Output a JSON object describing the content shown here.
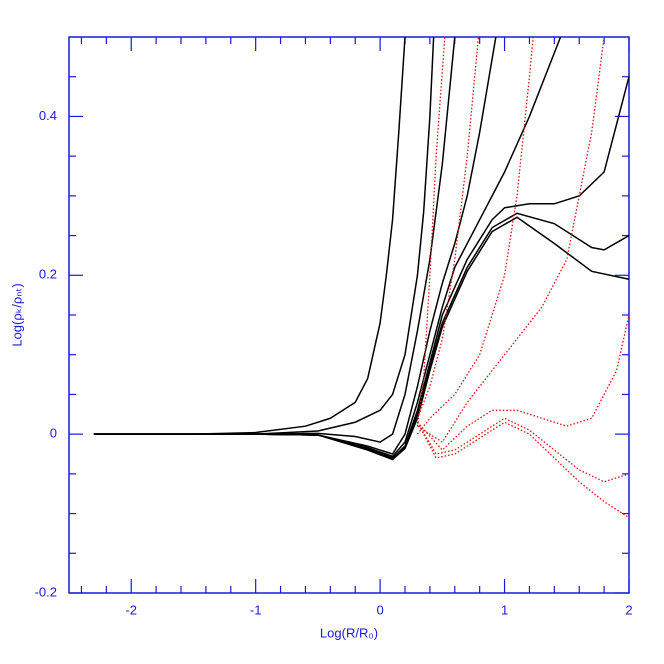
{
  "chart_data": {
    "type": "line",
    "x_label": "Log(R/R₀)",
    "y_label": "Log(ρₖ/ρₙₜ)",
    "xlim": [
      -2.5,
      2
    ],
    "ylim": [
      -0.2,
      0.5
    ],
    "xticks": [
      -2,
      -1,
      0,
      1,
      2
    ],
    "yticks": [
      -0.2,
      0,
      0.2,
      0.4
    ],
    "xminorticks": [
      -2.4,
      -2.2,
      -1.8,
      -1.6,
      -1.4,
      -1.2,
      -0.8,
      -0.6,
      -0.4,
      -0.2,
      0.2,
      0.4,
      0.6,
      0.8,
      1.2,
      1.4,
      1.6,
      1.8
    ],
    "yminorticks": [
      -0.15,
      -0.1,
      -0.05,
      0.05,
      0.1,
      0.15,
      0.25,
      0.3,
      0.35,
      0.45
    ],
    "series": [
      {
        "color": "#000000",
        "dashed": false,
        "x": [
          -2.3,
          -1.5,
          -1,
          -0.6,
          -0.4,
          -0.2,
          -0.1,
          0,
          0.05,
          0.1,
          0.15,
          0.2
        ],
        "values": [
          0,
          0,
          0.002,
          0.01,
          0.02,
          0.04,
          0.07,
          0.14,
          0.2,
          0.27,
          0.38,
          0.5
        ]
      },
      {
        "color": "#000000",
        "dashed": false,
        "x": [
          -2.3,
          -1,
          -0.5,
          -0.2,
          0,
          0.1,
          0.2,
          0.3,
          0.35,
          0.4,
          0.43
        ],
        "values": [
          0,
          0,
          0.004,
          0.015,
          0.03,
          0.05,
          0.1,
          0.2,
          0.28,
          0.4,
          0.5
        ]
      },
      {
        "color": "#000000",
        "dashed": false,
        "x": [
          -2.3,
          -1,
          -0.5,
          -0.2,
          0,
          0.1,
          0.2,
          0.3,
          0.4,
          0.5,
          0.6
        ],
        "values": [
          0,
          0,
          0.001,
          -0.003,
          -0.01,
          0,
          0.05,
          0.13,
          0.22,
          0.34,
          0.5
        ]
      },
      {
        "color": "#000000",
        "dashed": false,
        "x": [
          -2.3,
          -1,
          -0.5,
          -0.1,
          0.1,
          0.2,
          0.3,
          0.4,
          0.5,
          0.6,
          0.7,
          0.8,
          0.93
        ],
        "values": [
          0,
          0,
          -0.001,
          -0.015,
          -0.025,
          0,
          0.06,
          0.13,
          0.19,
          0.24,
          0.3,
          0.38,
          0.5
        ]
      },
      {
        "color": "#000000",
        "dashed": false,
        "x": [
          -2.3,
          -1,
          -0.5,
          -0.1,
          0.1,
          0.2,
          0.3,
          0.4,
          0.5,
          0.6,
          0.8,
          1,
          1.2,
          1.45
        ],
        "values": [
          0,
          0,
          -0.001,
          -0.017,
          -0.028,
          -0.01,
          0.04,
          0.1,
          0.16,
          0.21,
          0.27,
          0.33,
          0.4,
          0.5
        ]
      },
      {
        "color": "#000000",
        "dashed": false,
        "x": [
          -2.3,
          -1,
          -0.5,
          -0.1,
          0.1,
          0.2,
          0.3,
          0.4,
          0.5,
          0.7,
          0.9,
          1,
          1.2,
          1.4,
          1.6,
          1.8,
          2
        ],
        "values": [
          0,
          0,
          -0.001,
          -0.018,
          -0.03,
          -0.015,
          0.03,
          0.09,
          0.15,
          0.22,
          0.27,
          0.285,
          0.29,
          0.29,
          0.3,
          0.33,
          0.45
        ]
      },
      {
        "color": "#000000",
        "dashed": false,
        "x": [
          -2.3,
          -1,
          -0.5,
          -0.1,
          0.1,
          0.2,
          0.3,
          0.4,
          0.5,
          0.7,
          0.9,
          1.1,
          1.4,
          1.7,
          1.8,
          2
        ],
        "values": [
          0,
          0,
          -0.001,
          -0.019,
          -0.031,
          -0.017,
          0.025,
          0.085,
          0.14,
          0.21,
          0.26,
          0.278,
          0.265,
          0.235,
          0.232,
          0.25
        ]
      },
      {
        "color": "#000000",
        "dashed": false,
        "x": [
          -2.3,
          -1,
          -0.5,
          -0.1,
          0.1,
          0.2,
          0.3,
          0.4,
          0.5,
          0.7,
          0.9,
          1.1,
          1.4,
          1.7,
          2
        ],
        "values": [
          0,
          0,
          -0.001,
          -0.02,
          -0.032,
          -0.018,
          0.02,
          0.08,
          0.135,
          0.205,
          0.255,
          0.273,
          0.24,
          0.205,
          0.195
        ]
      },
      {
        "color": "#e01010",
        "dashed": true,
        "x": [
          0.3,
          0.35,
          0.4,
          0.45,
          0.52
        ],
        "values": [
          0.01,
          0.07,
          0.2,
          0.35,
          0.5
        ]
      },
      {
        "color": "#e01010",
        "dashed": true,
        "x": [
          0.3,
          0.4,
          0.5,
          0.6,
          0.7,
          0.79
        ],
        "values": [
          0.02,
          0.06,
          0.12,
          0.22,
          0.35,
          0.5
        ]
      },
      {
        "color": "#e01010",
        "dashed": true,
        "x": [
          0.3,
          0.4,
          0.6,
          0.8,
          1,
          1.1,
          1.2,
          1.23
        ],
        "values": [
          0.0,
          0.02,
          0.05,
          0.1,
          0.2,
          0.3,
          0.45,
          0.5
        ]
      },
      {
        "color": "#e01010",
        "dashed": true,
        "x": [
          0.3,
          0.5,
          0.7,
          0.9,
          1.1,
          1.3,
          1.5,
          1.6,
          1.7,
          1.8
        ],
        "values": [
          0.01,
          -0.01,
          0.04,
          0.08,
          0.12,
          0.16,
          0.22,
          0.3,
          0.38,
          0.5
        ]
      },
      {
        "color": "#e01010",
        "dashed": true,
        "x": [
          0.3,
          0.5,
          0.7,
          0.9,
          1.1,
          1.3,
          1.5,
          1.7,
          1.9,
          2
        ],
        "values": [
          0.015,
          -0.02,
          0.01,
          0.03,
          0.03,
          0.02,
          0.01,
          0.02,
          0.08,
          0.15
        ]
      },
      {
        "color": "#e01010",
        "dashed": true,
        "x": [
          0.3,
          0.45,
          0.6,
          0.8,
          1,
          1.2,
          1.4,
          1.6,
          1.8,
          2
        ],
        "values": [
          0.015,
          -0.025,
          -0.02,
          0,
          0.02,
          0.005,
          -0.02,
          -0.045,
          -0.06,
          -0.05
        ]
      },
      {
        "color": "#e01010",
        "dashed": true,
        "x": [
          0.3,
          0.45,
          0.6,
          0.8,
          1,
          1.2,
          1.4,
          1.6,
          1.8,
          2
        ],
        "values": [
          0.015,
          -0.03,
          -0.025,
          -0.005,
          0.015,
          0,
          -0.03,
          -0.06,
          -0.085,
          -0.105
        ]
      }
    ]
  }
}
